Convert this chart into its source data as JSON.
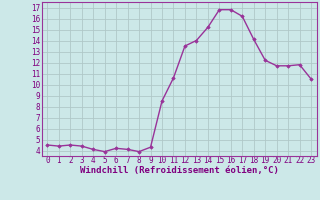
{
  "x": [
    0,
    1,
    2,
    3,
    4,
    5,
    6,
    7,
    8,
    9,
    10,
    11,
    12,
    13,
    14,
    15,
    16,
    17,
    18,
    19,
    20,
    21,
    22,
    23
  ],
  "y": [
    4.5,
    4.4,
    4.5,
    4.4,
    4.1,
    3.9,
    4.2,
    4.1,
    3.9,
    4.3,
    8.5,
    10.6,
    13.5,
    14.0,
    15.2,
    16.8,
    16.8,
    16.2,
    14.1,
    12.2,
    11.7,
    11.7,
    11.8,
    10.5
  ],
  "line_color": "#993399",
  "marker": "D",
  "markersize": 1.8,
  "linewidth": 1.0,
  "bg_color": "#cce8e8",
  "grid_color": "#b0c8c8",
  "xlabel": "Windchill (Refroidissement éolien,°C)",
  "xlabel_fontsize": 6.5,
  "ylabel_ticks": [
    4,
    5,
    6,
    7,
    8,
    9,
    10,
    11,
    12,
    13,
    14,
    15,
    16,
    17
  ],
  "ylim": [
    3.5,
    17.5
  ],
  "xlim": [
    -0.5,
    23.5
  ],
  "xtick_labels": [
    "0",
    "1",
    "2",
    "3",
    "4",
    "5",
    "6",
    "7",
    "8",
    "9",
    "10",
    "11",
    "12",
    "13",
    "14",
    "15",
    "16",
    "17",
    "18",
    "19",
    "20",
    "21",
    "22",
    "23"
  ],
  "tick_fontsize": 5.5,
  "label_color": "#800080",
  "spine_color": "#993399"
}
